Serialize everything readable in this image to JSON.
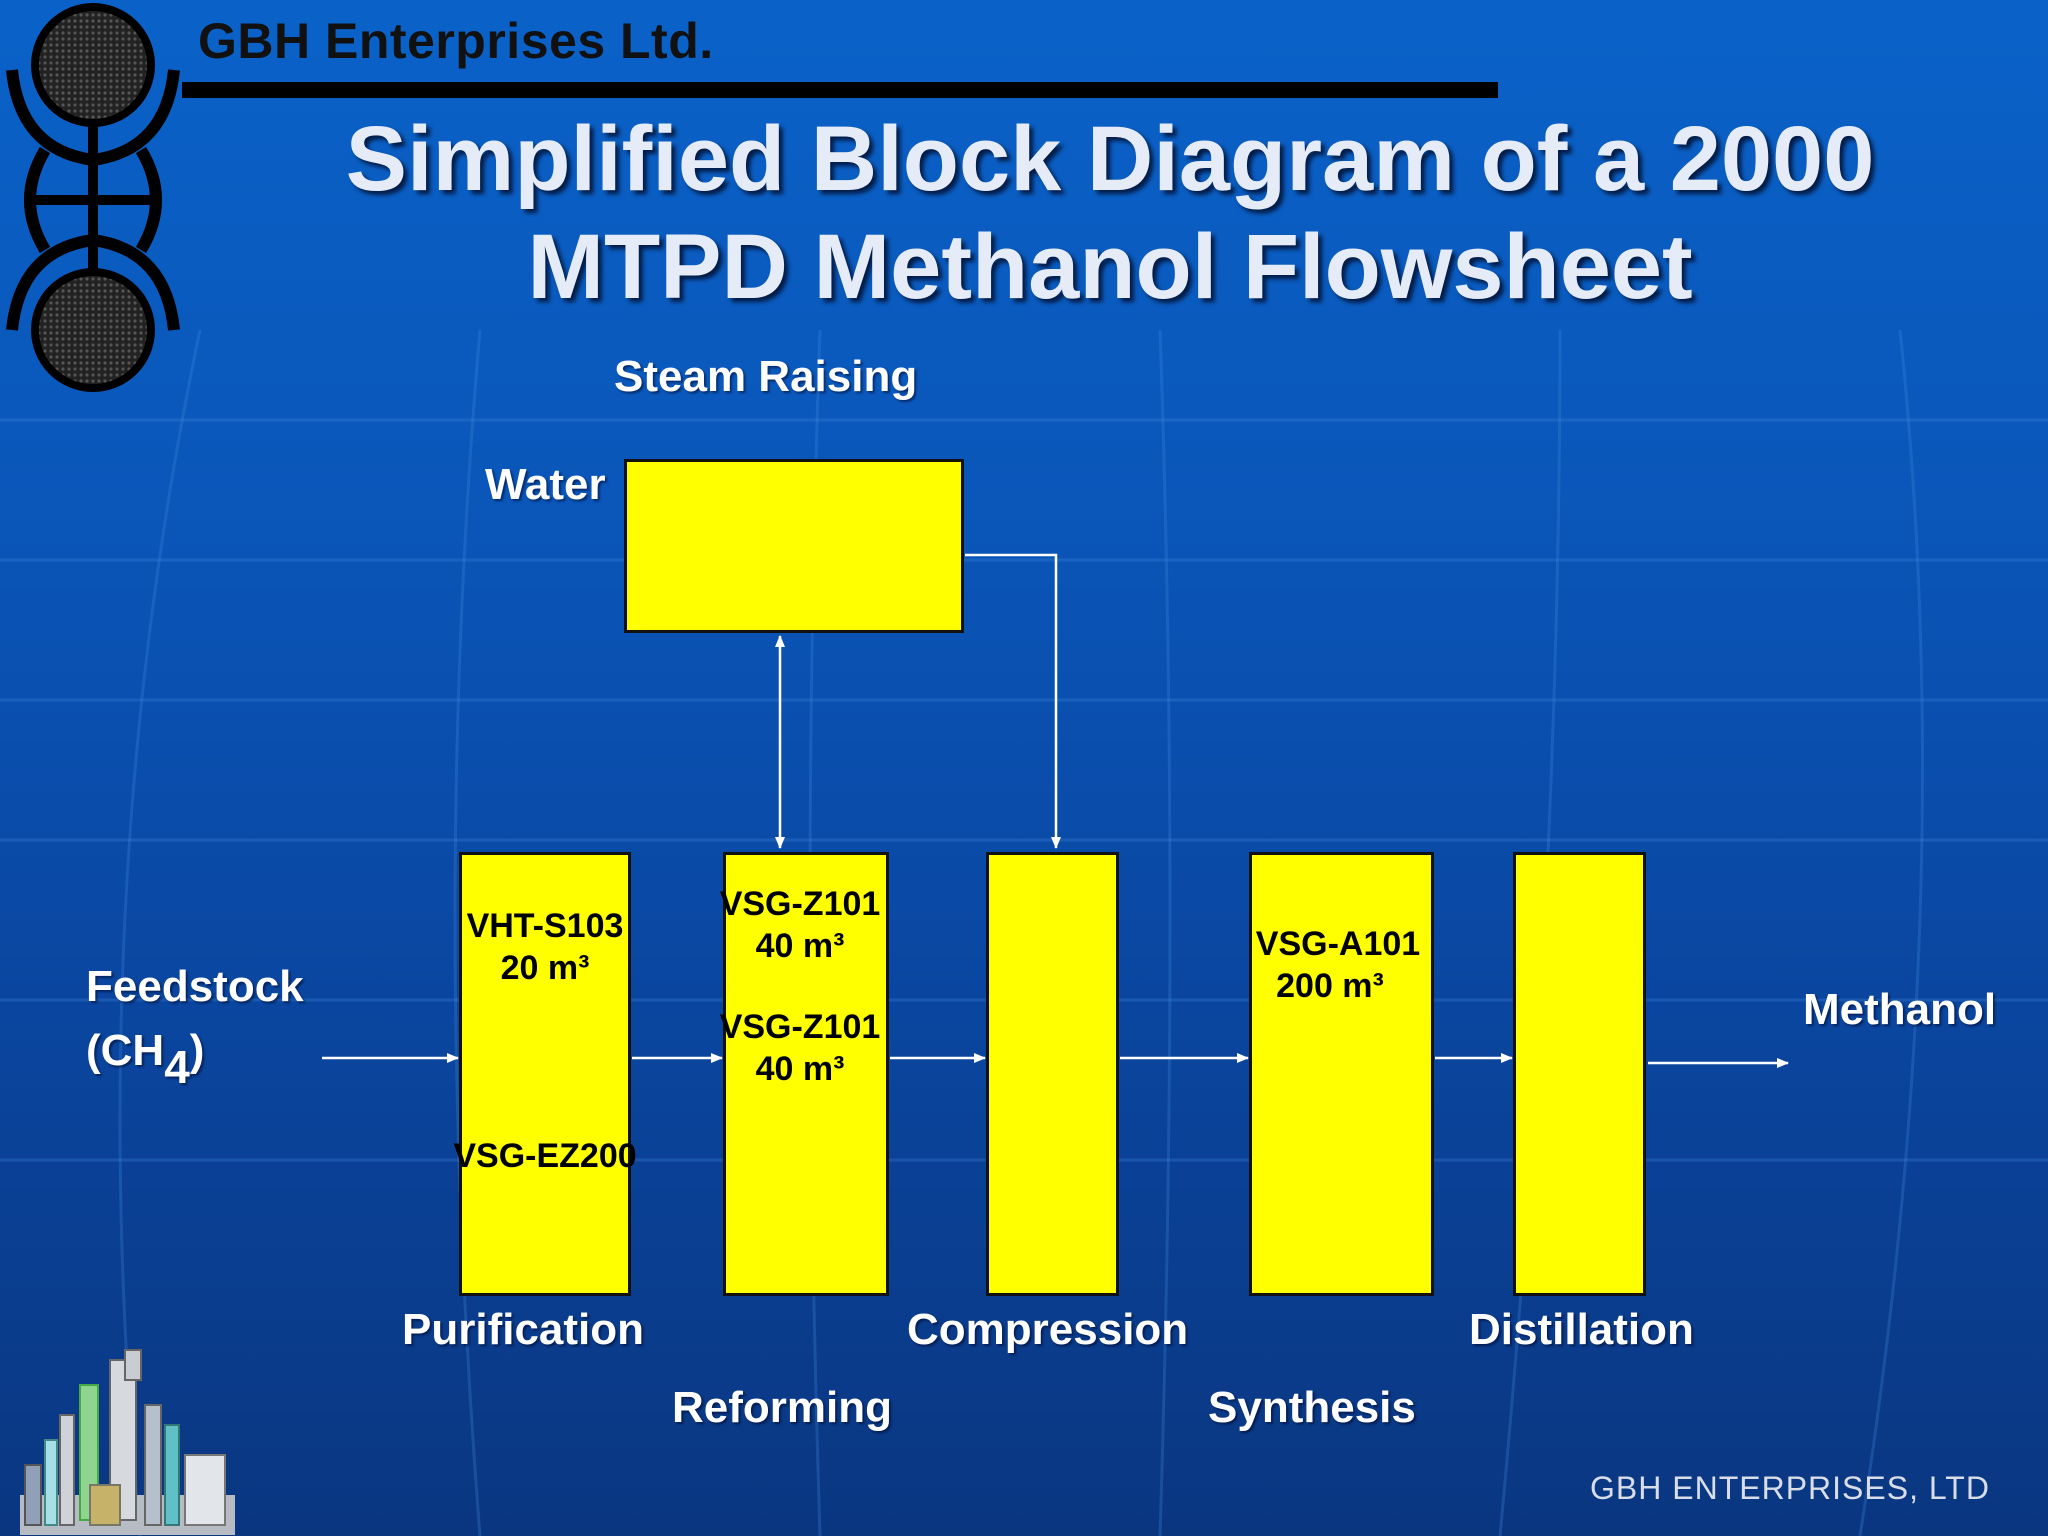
{
  "header": {
    "company": "GBH Enterprises Ltd.",
    "title_line1": "Simplified Block Diagram of a 2000",
    "title_line2": "MTPD Methanol Flowsheet"
  },
  "diagram": {
    "steam_raising_label": "Steam Raising",
    "water_label": "Water",
    "feedstock_label": "Feedstock",
    "feedstock_formula_prefix": "(CH",
    "feedstock_formula_sub": "4",
    "feedstock_formula_suffix": ")",
    "product_label": "Methanol",
    "stages": {
      "purification": {
        "name": "Purification",
        "equipment": [
          "VHT-S103",
          "20 m³",
          "VSG-EZ200"
        ]
      },
      "reforming": {
        "name": "Reforming",
        "equipment": [
          "VSG-Z101",
          "40 m³",
          "VSG-Z101",
          "40 m³"
        ]
      },
      "compression": {
        "name": "Compression"
      },
      "synthesis": {
        "name": "Synthesis",
        "equipment": [
          "VSG-A101",
          "200 m³"
        ]
      },
      "distillation": {
        "name": "Distillation"
      }
    },
    "colors": {
      "block_fill": "#ffff00",
      "background": "#0a55b8",
      "arrow": "#ffffff"
    }
  },
  "footer": {
    "text": "GBH ENTERPRISES, LTD"
  }
}
